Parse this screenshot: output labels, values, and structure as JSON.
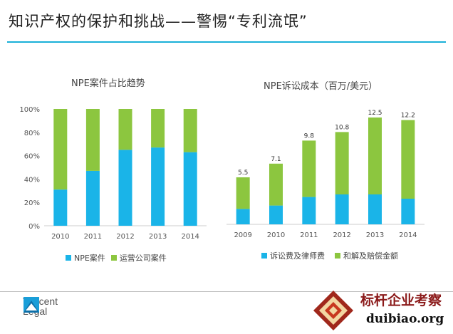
{
  "slide": {
    "title": "知识产权的保护和挑战——警惕“专利流氓”",
    "accent_color": "#1ab0d8"
  },
  "chart_data": [
    {
      "type": "bar",
      "stacked": true,
      "title": "NPE案件占比趋势",
      "categories": [
        "2010",
        "2011",
        "2012",
        "2013",
        "2014"
      ],
      "series": [
        {
          "name": "NPE案件",
          "color": "#1ab4e8",
          "values": [
            31,
            47,
            65,
            67,
            63
          ]
        },
        {
          "name": "运营公司案件",
          "color": "#8cc63f",
          "values": [
            69,
            53,
            35,
            33,
            37
          ]
        }
      ],
      "ylim": [
        0,
        100
      ],
      "yticks": [
        "0%",
        "20%",
        "40%",
        "60%",
        "80%",
        "100%"
      ],
      "grid": false,
      "legend": "bottom"
    },
    {
      "type": "bar",
      "stacked": true,
      "title": "NPE诉讼成本（百万/美元）",
      "categories": [
        "2009",
        "2010",
        "2011",
        "2012",
        "2013",
        "2014"
      ],
      "series": [
        {
          "name": "诉讼费及律师费",
          "color": "#1ab4e8",
          "values": [
            1.8,
            2.2,
            3.2,
            3.5,
            3.5,
            3.0
          ]
        },
        {
          "name": "和解及赔偿金额",
          "color": "#8cc63f",
          "values": [
            3.7,
            4.9,
            6.6,
            7.3,
            9.0,
            9.2
          ]
        }
      ],
      "totals": [
        "5.5",
        "7.1",
        "9.8",
        "10.8",
        "12.5",
        "12.2"
      ],
      "ylim": [
        0,
        14
      ],
      "grid": false,
      "legend": "bottom"
    }
  ],
  "footer": {
    "logo_line1": "Tencent",
    "logo_line2": "Legal",
    "watermark_line1": "标杆企业考察",
    "watermark_line2": "duibiao.org"
  }
}
